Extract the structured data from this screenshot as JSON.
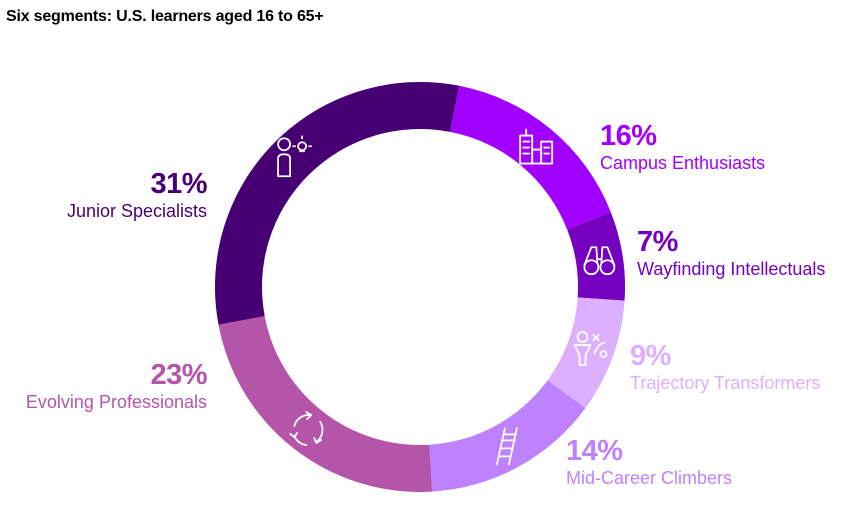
{
  "chart_data": {
    "type": "pie",
    "donut": true,
    "title": "Six segments: U.S. learners aged 16 to 65+",
    "unit": "%",
    "segments": [
      {
        "name": "Campus Enthusiasts",
        "value": 16,
        "label": "16%",
        "color": "#a100ff",
        "icon": "buildings-icon"
      },
      {
        "name": "Wayfinding Intellectuals",
        "value": 7,
        "label": "7%",
        "color": "#7500c0",
        "icon": "binoculars-icon"
      },
      {
        "name": "Trajectory Transformers",
        "value": 9,
        "label": "9%",
        "color": "#dcafff",
        "icon": "strategy-play-icon"
      },
      {
        "name": "Mid-Career Climbers",
        "value": 14,
        "label": "14%",
        "color": "#be82ff",
        "icon": "ladder-icon"
      },
      {
        "name": "Evolving Professionals",
        "value": 23,
        "label": "23%",
        "color": "#b455aa",
        "icon": "cycle-arrows-icon"
      },
      {
        "name": "Junior Specialists",
        "value": 31,
        "label": "31%",
        "color": "#460073",
        "icon": "person-lightbulb-icon"
      }
    ]
  }
}
